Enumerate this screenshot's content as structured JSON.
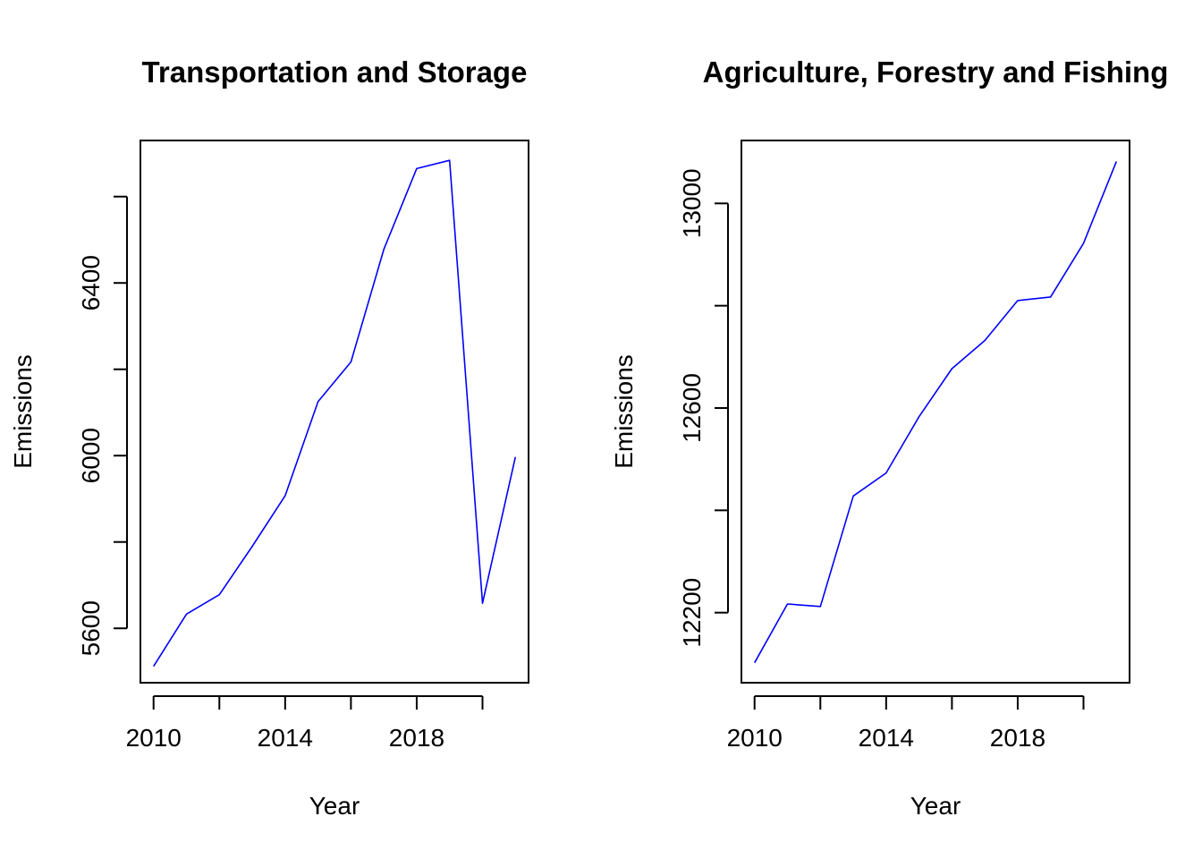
{
  "colors": {
    "line": "#0000ff",
    "axis": "#000000",
    "background": "#ffffff"
  },
  "chart_data": [
    {
      "type": "line",
      "title": "Transportation and Storage",
      "xlabel": "Year",
      "ylabel": "Emissions",
      "x": [
        2010,
        2011,
        2012,
        2013,
        2014,
        2015,
        2016,
        2017,
        2018,
        2019,
        2020,
        2021
      ],
      "series": [
        {
          "values": [
            5512,
            5633,
            5678,
            5790,
            5907,
            6125,
            6217,
            6478,
            6665,
            6684,
            5658,
            5997
          ]
        }
      ],
      "xlim": [
        2009.6,
        2021.4
      ],
      "ylim": [
        5474,
        6730
      ],
      "xticks": [
        2010,
        2012,
        2014,
        2016,
        2018,
        2020
      ],
      "xtick_labels": [
        "2010",
        "",
        "2014",
        "",
        "2018",
        ""
      ],
      "yticks": [
        5600,
        5800,
        6000,
        6200,
        6400,
        6600
      ],
      "ytick_labels": [
        "5600",
        "",
        "6000",
        "",
        "6400",
        ""
      ]
    },
    {
      "type": "line",
      "title": "Agriculture, Forestry and Fishing",
      "xlabel": "Year",
      "ylabel": "Emissions",
      "x": [
        2010,
        2011,
        2012,
        2013,
        2014,
        2015,
        2016,
        2017,
        2018,
        2019,
        2020,
        2021
      ],
      "series": [
        {
          "values": [
            12102,
            12217,
            12212,
            12428,
            12473,
            12583,
            12677,
            12732,
            12810,
            12817,
            12922,
            13082
          ]
        }
      ],
      "xlim": [
        2009.6,
        2021.4
      ],
      "ylim": [
        12063,
        13123
      ],
      "xticks": [
        2010,
        2012,
        2014,
        2016,
        2018,
        2020
      ],
      "xtick_labels": [
        "2010",
        "",
        "2014",
        "",
        "2018",
        ""
      ],
      "yticks": [
        12200,
        12400,
        12600,
        12800,
        13000
      ],
      "ytick_labels": [
        "12200",
        "",
        "12600",
        "",
        "13000"
      ]
    }
  ]
}
